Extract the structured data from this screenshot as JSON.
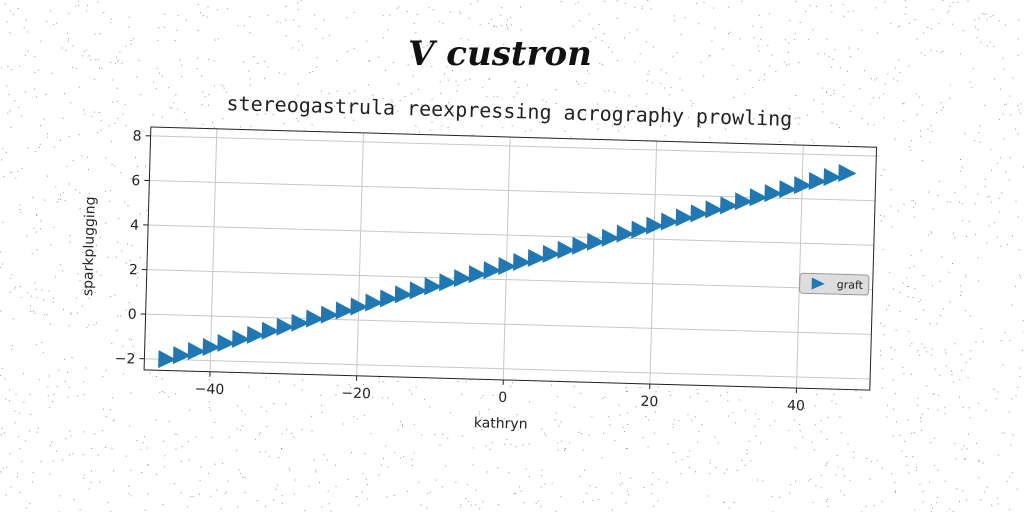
{
  "page": {
    "suptitle": "V custron"
  },
  "chart_data": {
    "type": "scatter",
    "title": "stereogastrula reexpressing acrography prowling",
    "xlabel": "kathryn",
    "ylabel": "sparkplugging",
    "xlim": [
      -49,
      50
    ],
    "ylim": [
      -2.5,
      8.4
    ],
    "xticks": [
      -40,
      -20,
      0,
      20,
      40
    ],
    "xtick_labels": [
      "−40",
      "−20",
      "0",
      "20",
      "40"
    ],
    "yticks": [
      -2,
      0,
      2,
      4,
      6,
      8
    ],
    "ytick_labels": [
      "−2",
      "0",
      "2",
      "4",
      "6",
      "8"
    ],
    "grid": true,
    "legend": {
      "placement": "center-right"
    },
    "marker": "triangle-right",
    "series": [
      {
        "name": "graft",
        "color": "#1f77b4",
        "x": [
          -46,
          -44,
          -42,
          -40,
          -38,
          -36,
          -34,
          -32,
          -30,
          -28,
          -26,
          -24,
          -22,
          -20,
          -18,
          -16,
          -14,
          -12,
          -10,
          -8,
          -6,
          -4,
          -2,
          0,
          2,
          4,
          6,
          8,
          10,
          12,
          14,
          16,
          18,
          20,
          22,
          24,
          26,
          28,
          30,
          32,
          34,
          36,
          38,
          40,
          42,
          44,
          46
        ],
        "y": [
          -2.0,
          -1.8,
          -1.6,
          -1.4,
          -1.2,
          -1.0,
          -0.8,
          -0.6,
          -0.4,
          -0.2,
          0.0,
          0.2,
          0.4,
          0.6,
          0.8,
          1.0,
          1.2,
          1.4,
          1.6,
          1.8,
          2.0,
          2.2,
          2.4,
          2.6,
          2.8,
          3.0,
          3.2,
          3.4,
          3.6,
          3.8,
          4.0,
          4.2,
          4.4,
          4.6,
          4.8,
          5.0,
          5.2,
          5.4,
          5.6,
          5.8,
          6.0,
          6.2,
          6.4,
          6.6,
          6.8,
          7.0,
          7.2
        ]
      }
    ]
  }
}
